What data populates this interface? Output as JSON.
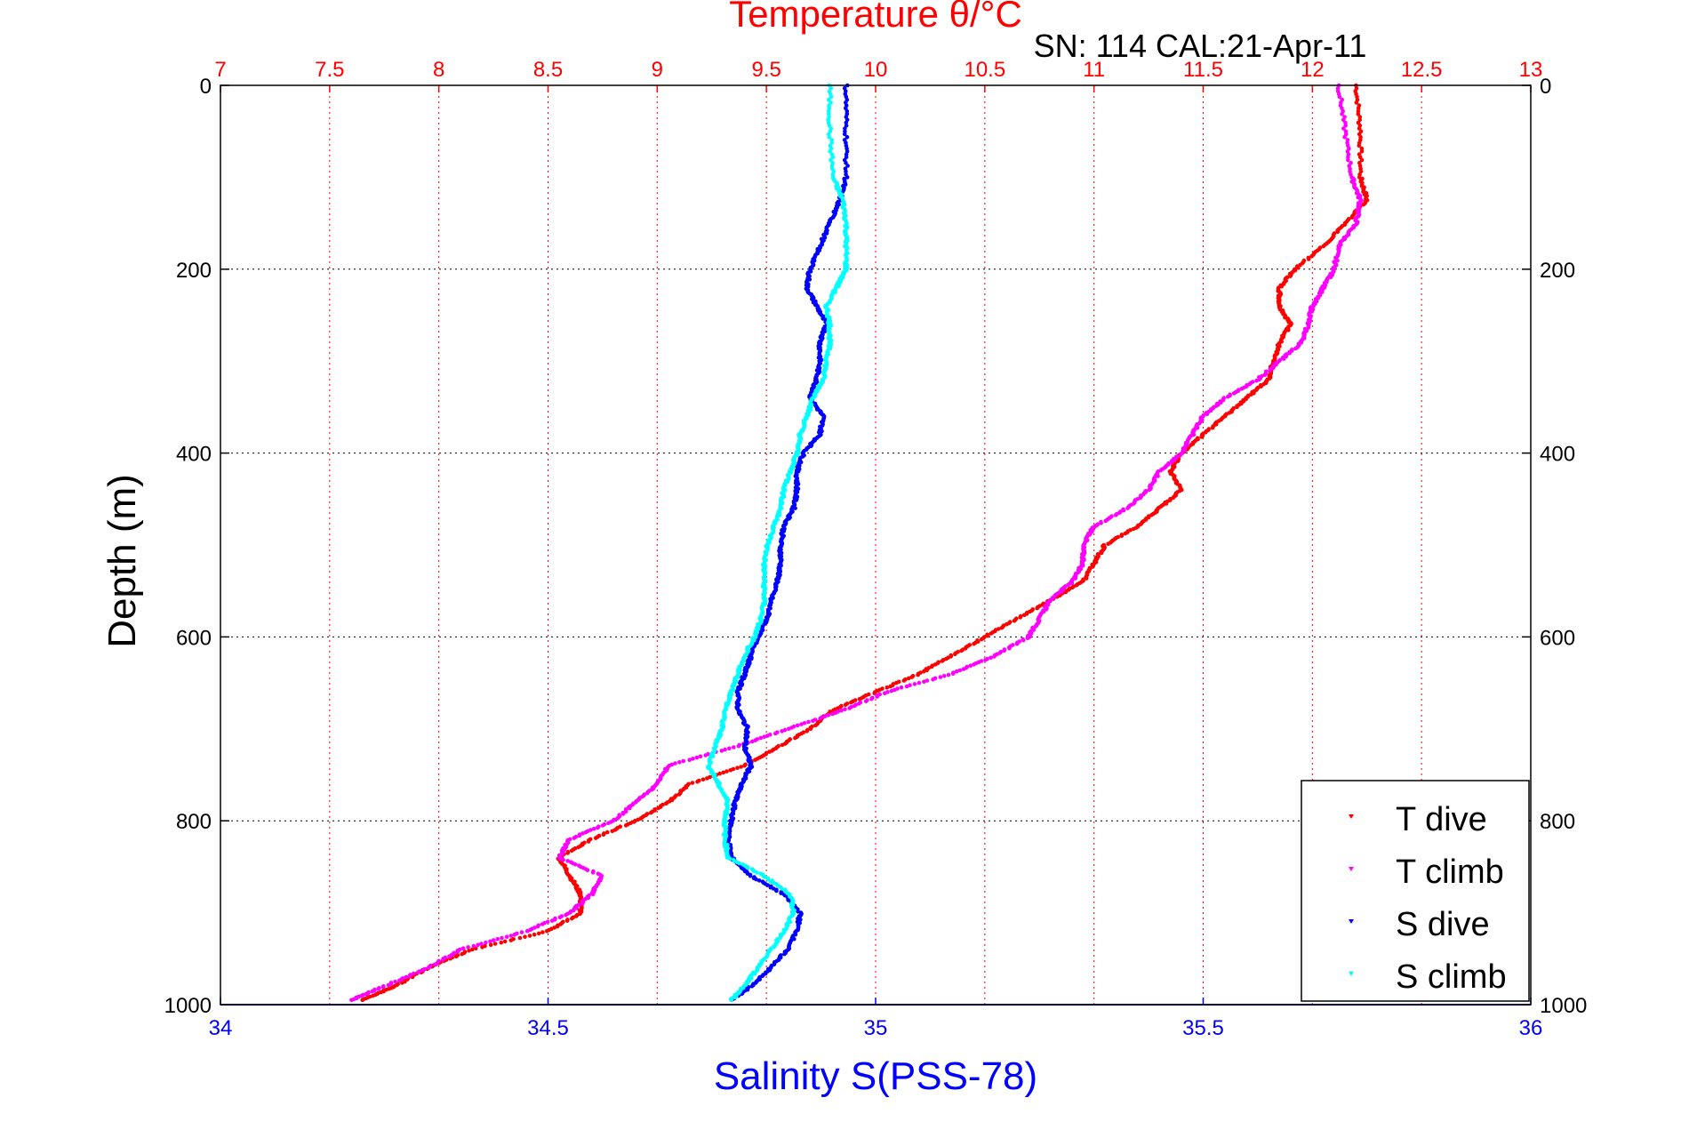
{
  "chart_data": {
    "type": "scatter",
    "title_top": "Temperature θ/°C",
    "subtitle": "SN: 114  CAL:21-Apr-11",
    "xlabel_bottom": "Salinity S(PSS-78)",
    "ylabel": "Depth (m)",
    "y_axis": {
      "range": [
        0,
        1000
      ],
      "reversed": true,
      "ticks": [
        "0",
        "200",
        "400",
        "600",
        "800",
        "1000"
      ],
      "tick_values": [
        0,
        200,
        400,
        600,
        800,
        1000
      ]
    },
    "x_axis_top": {
      "range": [
        7,
        13
      ],
      "ticks": [
        "7",
        "7.5",
        "8",
        "8.5",
        "9",
        "9.5",
        "10",
        "10.5",
        "11",
        "11.5",
        "12",
        "12.5",
        "13"
      ],
      "tick_values": [
        7,
        7.5,
        8,
        8.5,
        9,
        9.5,
        10,
        10.5,
        11,
        11.5,
        12,
        12.5,
        13
      ],
      "grid": true,
      "color": "#ff0000"
    },
    "x_axis_bottom": {
      "range": [
        34,
        36
      ],
      "ticks": [
        "34",
        "34.5",
        "35",
        "35.5",
        "36"
      ],
      "tick_values": [
        34,
        34.5,
        35,
        35.5,
        36
      ],
      "color": "#0000ff"
    },
    "y_grid": true,
    "legend_position": "bottom-right",
    "series": [
      {
        "name": "T dive",
        "axis": "top",
        "color": "#ff0000",
        "points": [
          [
            0,
            12.2
          ],
          [
            50,
            12.22
          ],
          [
            100,
            12.22
          ],
          [
            125,
            12.25
          ],
          [
            150,
            12.15
          ],
          [
            175,
            12.05
          ],
          [
            200,
            11.92
          ],
          [
            220,
            11.85
          ],
          [
            240,
            11.85
          ],
          [
            260,
            11.9
          ],
          [
            280,
            11.85
          ],
          [
            300,
            11.82
          ],
          [
            320,
            11.8
          ],
          [
            340,
            11.7
          ],
          [
            360,
            11.6
          ],
          [
            380,
            11.5
          ],
          [
            400,
            11.4
          ],
          [
            420,
            11.35
          ],
          [
            440,
            11.4
          ],
          [
            460,
            11.3
          ],
          [
            480,
            11.2
          ],
          [
            500,
            11.05
          ],
          [
            520,
            11.0
          ],
          [
            540,
            10.95
          ],
          [
            560,
            10.8
          ],
          [
            580,
            10.65
          ],
          [
            600,
            10.5
          ],
          [
            620,
            10.35
          ],
          [
            640,
            10.2
          ],
          [
            660,
            10.0
          ],
          [
            680,
            9.8
          ],
          [
            700,
            9.7
          ],
          [
            720,
            9.55
          ],
          [
            740,
            9.4
          ],
          [
            760,
            9.15
          ],
          [
            780,
            9.05
          ],
          [
            800,
            8.9
          ],
          [
            820,
            8.7
          ],
          [
            840,
            8.55
          ],
          [
            860,
            8.6
          ],
          [
            880,
            8.65
          ],
          [
            900,
            8.65
          ],
          [
            920,
            8.5
          ],
          [
            940,
            8.15
          ],
          [
            960,
            7.95
          ],
          [
            980,
            7.8
          ],
          [
            995,
            7.65
          ]
        ]
      },
      {
        "name": "T climb",
        "axis": "top",
        "color": "#ff00ff",
        "points": [
          [
            0,
            12.12
          ],
          [
            50,
            12.15
          ],
          [
            100,
            12.18
          ],
          [
            125,
            12.22
          ],
          [
            150,
            12.2
          ],
          [
            175,
            12.12
          ],
          [
            200,
            12.1
          ],
          [
            220,
            12.05
          ],
          [
            240,
            12.0
          ],
          [
            260,
            11.98
          ],
          [
            280,
            11.95
          ],
          [
            300,
            11.85
          ],
          [
            320,
            11.75
          ],
          [
            340,
            11.6
          ],
          [
            360,
            11.5
          ],
          [
            380,
            11.45
          ],
          [
            400,
            11.4
          ],
          [
            420,
            11.3
          ],
          [
            440,
            11.25
          ],
          [
            460,
            11.15
          ],
          [
            480,
            11.0
          ],
          [
            500,
            10.95
          ],
          [
            520,
            10.95
          ],
          [
            540,
            10.9
          ],
          [
            560,
            10.8
          ],
          [
            580,
            10.75
          ],
          [
            600,
            10.7
          ],
          [
            620,
            10.55
          ],
          [
            640,
            10.35
          ],
          [
            660,
            10.05
          ],
          [
            680,
            9.85
          ],
          [
            700,
            9.6
          ],
          [
            720,
            9.35
          ],
          [
            740,
            9.05
          ],
          [
            760,
            9.0
          ],
          [
            780,
            8.9
          ],
          [
            800,
            8.8
          ],
          [
            820,
            8.6
          ],
          [
            840,
            8.55
          ],
          [
            860,
            8.75
          ],
          [
            880,
            8.7
          ],
          [
            900,
            8.6
          ],
          [
            920,
            8.4
          ],
          [
            940,
            8.1
          ],
          [
            960,
            7.95
          ],
          [
            980,
            7.75
          ],
          [
            995,
            7.6
          ]
        ]
      },
      {
        "name": "S dive",
        "axis": "bottom",
        "color": "#0000ff",
        "points": [
          [
            0,
            34.955
          ],
          [
            50,
            34.955
          ],
          [
            100,
            34.955
          ],
          [
            125,
            34.945
          ],
          [
            150,
            34.93
          ],
          [
            175,
            34.915
          ],
          [
            200,
            34.9
          ],
          [
            220,
            34.895
          ],
          [
            240,
            34.91
          ],
          [
            260,
            34.925
          ],
          [
            280,
            34.915
          ],
          [
            300,
            34.915
          ],
          [
            320,
            34.91
          ],
          [
            340,
            34.9
          ],
          [
            360,
            34.92
          ],
          [
            380,
            34.915
          ],
          [
            400,
            34.89
          ],
          [
            420,
            34.88
          ],
          [
            440,
            34.88
          ],
          [
            460,
            34.875
          ],
          [
            480,
            34.86
          ],
          [
            500,
            34.855
          ],
          [
            520,
            34.855
          ],
          [
            540,
            34.85
          ],
          [
            560,
            34.84
          ],
          [
            580,
            34.835
          ],
          [
            600,
            34.82
          ],
          [
            620,
            34.81
          ],
          [
            640,
            34.8
          ],
          [
            660,
            34.79
          ],
          [
            680,
            34.79
          ],
          [
            700,
            34.805
          ],
          [
            720,
            34.8
          ],
          [
            740,
            34.81
          ],
          [
            760,
            34.795
          ],
          [
            780,
            34.785
          ],
          [
            800,
            34.78
          ],
          [
            820,
            34.775
          ],
          [
            840,
            34.78
          ],
          [
            860,
            34.81
          ],
          [
            880,
            34.86
          ],
          [
            900,
            34.885
          ],
          [
            920,
            34.88
          ],
          [
            940,
            34.865
          ],
          [
            960,
            34.84
          ],
          [
            980,
            34.81
          ],
          [
            995,
            34.78
          ]
        ]
      },
      {
        "name": "S climb",
        "axis": "bottom",
        "color": "#00ffff",
        "points": [
          [
            0,
            34.93
          ],
          [
            50,
            34.93
          ],
          [
            100,
            34.935
          ],
          [
            125,
            34.95
          ],
          [
            150,
            34.955
          ],
          [
            175,
            34.955
          ],
          [
            200,
            34.955
          ],
          [
            220,
            34.94
          ],
          [
            240,
            34.925
          ],
          [
            260,
            34.93
          ],
          [
            280,
            34.93
          ],
          [
            300,
            34.925
          ],
          [
            320,
            34.92
          ],
          [
            340,
            34.905
          ],
          [
            360,
            34.895
          ],
          [
            380,
            34.885
          ],
          [
            400,
            34.88
          ],
          [
            420,
            34.87
          ],
          [
            440,
            34.86
          ],
          [
            460,
            34.855
          ],
          [
            480,
            34.845
          ],
          [
            500,
            34.835
          ],
          [
            520,
            34.83
          ],
          [
            540,
            34.83
          ],
          [
            560,
            34.83
          ],
          [
            580,
            34.825
          ],
          [
            600,
            34.815
          ],
          [
            620,
            34.8
          ],
          [
            640,
            34.79
          ],
          [
            660,
            34.78
          ],
          [
            680,
            34.77
          ],
          [
            700,
            34.765
          ],
          [
            720,
            34.755
          ],
          [
            740,
            34.745
          ],
          [
            760,
            34.76
          ],
          [
            780,
            34.775
          ],
          [
            800,
            34.77
          ],
          [
            820,
            34.77
          ],
          [
            840,
            34.775
          ],
          [
            860,
            34.83
          ],
          [
            880,
            34.87
          ],
          [
            900,
            34.875
          ],
          [
            920,
            34.86
          ],
          [
            940,
            34.84
          ],
          [
            960,
            34.82
          ],
          [
            980,
            34.8
          ],
          [
            995,
            34.78
          ]
        ]
      }
    ]
  }
}
